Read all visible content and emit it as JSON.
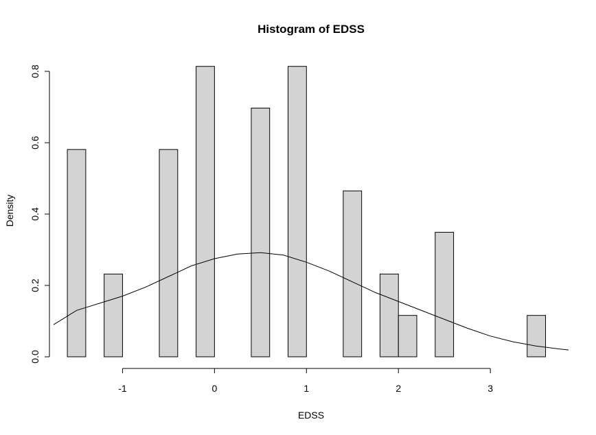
{
  "chart_data": {
    "type": "bar",
    "title": "Histogram of EDSS",
    "xlabel": "EDSS",
    "ylabel": "Density",
    "xlim": [
      -1.75,
      3.85
    ],
    "ylim": [
      0,
      0.85
    ],
    "x_ticks": [
      -1,
      0,
      1,
      2,
      3
    ],
    "x_tick_labels": [
      "-1",
      "0",
      "1",
      "2",
      "3"
    ],
    "y_ticks": [
      0.0,
      0.2,
      0.4,
      0.6,
      0.8
    ],
    "y_tick_labels": [
      "0.0",
      "0.2",
      "0.4",
      "0.6",
      "0.8"
    ],
    "bins": [
      {
        "x0": -1.6,
        "x1": -1.4,
        "density": 0.581
      },
      {
        "x0": -1.2,
        "x1": -1.0,
        "density": 0.232
      },
      {
        "x0": -0.6,
        "x1": -0.4,
        "density": 0.581
      },
      {
        "x0": -0.2,
        "x1": 0.0,
        "density": 0.814
      },
      {
        "x0": 0.4,
        "x1": 0.6,
        "density": 0.697
      },
      {
        "x0": 0.8,
        "x1": 1.0,
        "density": 0.814
      },
      {
        "x0": 1.4,
        "x1": 1.6,
        "density": 0.465
      },
      {
        "x0": 1.8,
        "x1": 2.0,
        "density": 0.232
      },
      {
        "x0": 2.0,
        "x1": 2.2,
        "density": 0.116
      },
      {
        "x0": 2.4,
        "x1": 2.6,
        "density": 0.349
      },
      {
        "x0": 3.4,
        "x1": 3.6,
        "density": 0.116
      }
    ],
    "density_curve": {
      "x": [
        -1.75,
        -1.5,
        -1.25,
        -1.0,
        -0.75,
        -0.5,
        -0.25,
        0.0,
        0.25,
        0.5,
        0.75,
        1.0,
        1.25,
        1.5,
        1.75,
        2.0,
        2.25,
        2.5,
        2.75,
        3.0,
        3.25,
        3.5,
        3.75,
        3.85
      ],
      "y": [
        0.09,
        0.13,
        0.15,
        0.17,
        0.195,
        0.225,
        0.255,
        0.275,
        0.288,
        0.292,
        0.285,
        0.265,
        0.24,
        0.21,
        0.18,
        0.155,
        0.13,
        0.105,
        0.08,
        0.058,
        0.042,
        0.03,
        0.022,
        0.019
      ]
    },
    "grid": false,
    "legend": "none"
  }
}
